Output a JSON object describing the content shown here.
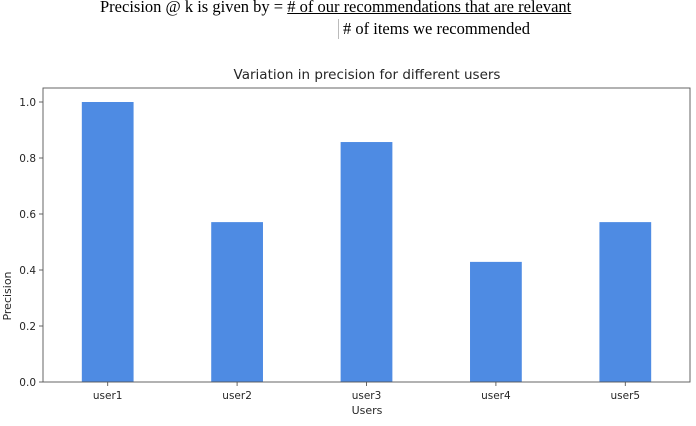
{
  "formula": {
    "prefix": "Precision @ k is given by = ",
    "numerator": "# of our recommendations that are relevant",
    "denominator": "# of items we recommended"
  },
  "chart_data": {
    "type": "bar",
    "title": "Variation in precision for different users",
    "xlabel": "Users",
    "ylabel": "Precision",
    "categories": [
      "user1",
      "user2",
      "user3",
      "user4",
      "user5"
    ],
    "values": [
      1.0,
      0.571,
      0.857,
      0.429,
      0.571
    ],
    "ylim": [
      0,
      1.05
    ],
    "yticks": [
      0.0,
      0.2,
      0.4,
      0.6,
      0.8,
      1.0
    ],
    "ytick_labels": [
      "0.0",
      "0.2",
      "0.4",
      "0.6",
      "0.8",
      "1.0"
    ],
    "grid": false,
    "bar_color": "#4e8be3"
  }
}
